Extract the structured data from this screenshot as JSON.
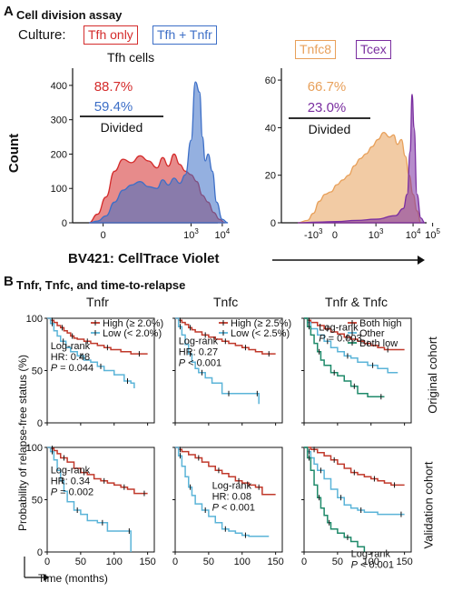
{
  "colors": {
    "tfh_only": "#d42c2c",
    "tfh_tnfr": "#3d6fc7",
    "tnfc8": "#e8a05a",
    "tcex": "#7a2ea0",
    "high": "#c0392b",
    "low": "#5bb4d8",
    "both_low": "#1f8a6a"
  },
  "panelA": {
    "letter": "A",
    "title": "Cell division assay",
    "culture_label": "Culture:",
    "legend": [
      "Tfh only",
      "Tfh + Tnfr"
    ],
    "legend2": [
      "Tnfc8",
      "Tcex"
    ],
    "xlabel": "BV421: CellTrace Violet",
    "ylabel": "Count"
  },
  "panelB": {
    "letter": "B",
    "title": "Tnfr, Tnfc, and time-to-relapse",
    "ylabel": "Probability of relapse-free status (%)",
    "xlabel": "Time (months)",
    "row_labels": [
      "Original cohort",
      "Validation cohort"
    ]
  },
  "chart_data": [
    {
      "type": "area",
      "title": "Tfh cells",
      "x_ticks": [
        "0",
        "10^3",
        "10^4"
      ],
      "ylim": [
        0,
        450
      ],
      "y_ticks": [
        0,
        100,
        200,
        300,
        400
      ],
      "series": [
        {
          "name": "Tfh only",
          "percent_divided": "88.7%",
          "x": [
            -0.5,
            -0.2,
            0.1,
            0.4,
            0.7,
            1.0,
            1.3,
            1.6,
            1.9,
            2.1,
            2.3,
            2.5,
            2.7,
            2.9,
            3.1,
            3.3,
            3.5,
            3.7,
            3.9,
            4.1,
            4.3
          ],
          "y": [
            0,
            25,
            75,
            150,
            185,
            175,
            195,
            180,
            160,
            190,
            165,
            200,
            170,
            150,
            140,
            120,
            80,
            60,
            30,
            10,
            0
          ]
        },
        {
          "name": "Tfh + Tnfr",
          "percent_divided": "59.4%",
          "x": [
            -0.5,
            -0.2,
            0.1,
            0.4,
            0.7,
            1.0,
            1.3,
            1.6,
            1.9,
            2.1,
            2.3,
            2.5,
            2.7,
            2.9,
            3.1,
            3.25,
            3.4,
            3.5,
            3.6,
            3.7,
            3.85,
            4.0,
            4.2,
            4.4
          ],
          "y": [
            0,
            5,
            20,
            60,
            95,
            110,
            120,
            105,
            100,
            125,
            110,
            130,
            115,
            140,
            240,
            410,
            380,
            250,
            180,
            200,
            150,
            60,
            10,
            0
          ]
        }
      ],
      "annotation": "Divided"
    },
    {
      "type": "area",
      "title": "",
      "x_ticks": [
        "-10^3",
        "0",
        "10^3",
        "10^4",
        "10^5"
      ],
      "ylim": [
        0,
        65
      ],
      "y_ticks": [
        0,
        20,
        40,
        60
      ],
      "series": [
        {
          "name": "Tnfc8",
          "percent_divided": "66.7%",
          "x": [
            -3.0,
            -2.5,
            -2.2,
            -1.9,
            -1.6,
            -1.3,
            -1.0,
            -0.7,
            -0.4,
            -0.1,
            0.2,
            0.5,
            0.8,
            1.1,
            1.4,
            1.7,
            1.9,
            2.1,
            2.3,
            2.5,
            2.7,
            2.9,
            3.1,
            3.3
          ],
          "y": [
            0,
            1,
            4,
            9,
            12,
            13,
            16,
            18,
            20,
            24,
            27,
            29,
            32,
            35,
            38,
            36,
            37,
            33,
            35,
            28,
            20,
            12,
            5,
            0
          ]
        },
        {
          "name": "Tcex",
          "percent_divided": "23.0%",
          "x": [
            -3.0,
            -2.0,
            -1.0,
            0.0,
            1.0,
            2.0,
            2.4,
            2.6,
            2.75,
            2.85,
            2.95,
            3.1,
            3.3,
            3.5
          ],
          "y": [
            0,
            0.3,
            0.5,
            1,
            1.5,
            3,
            6,
            12,
            30,
            54,
            40,
            12,
            2,
            0
          ]
        }
      ],
      "annotation": "Divided"
    },
    {
      "type": "line",
      "title": "Tnfr",
      "row": "Original cohort",
      "xlim": [
        0,
        160
      ],
      "ylim": [
        0,
        100
      ],
      "series": [
        {
          "name": "High (≥ 2.0%)",
          "x": [
            0,
            5,
            10,
            15,
            20,
            25,
            30,
            35,
            40,
            45,
            55,
            65,
            75,
            85,
            95,
            110,
            125,
            150
          ],
          "y": [
            100,
            98,
            96,
            93,
            91,
            88,
            86,
            83,
            81,
            80,
            78,
            76,
            74,
            72,
            70,
            68,
            66,
            66
          ]
        },
        {
          "name": "Low (< 2.0%)",
          "x": [
            0,
            5,
            10,
            15,
            20,
            28,
            35,
            45,
            55,
            65,
            75,
            85,
            100,
            115,
            125,
            130
          ],
          "y": [
            100,
            95,
            88,
            83,
            78,
            72,
            68,
            64,
            60,
            58,
            54,
            50,
            46,
            40,
            38,
            33
          ]
        }
      ],
      "stats": [
        "Log-rank",
        "HR: 0.48",
        "P = 0.044"
      ]
    },
    {
      "type": "line",
      "title": "Tnfc",
      "row": "Original cohort",
      "xlim": [
        0,
        160
      ],
      "ylim": [
        0,
        100
      ],
      "series": [
        {
          "name": "High (≥ 2.5%)",
          "x": [
            0,
            5,
            10,
            15,
            20,
            25,
            30,
            40,
            50,
            60,
            70,
            80,
            90,
            100,
            110,
            120,
            130,
            150
          ],
          "y": [
            100,
            98,
            96,
            94,
            91,
            89,
            87,
            84,
            82,
            80,
            78,
            76,
            74,
            72,
            70,
            68,
            66,
            66
          ]
        },
        {
          "name": "Low (< 2.5%)",
          "x": [
            0,
            5,
            10,
            15,
            20,
            25,
            30,
            35,
            45,
            55,
            70,
            90,
            110,
            120,
            125
          ],
          "y": [
            100,
            92,
            84,
            75,
            66,
            58,
            52,
            48,
            43,
            38,
            28,
            28,
            28,
            28,
            18
          ]
        }
      ],
      "stats": [
        "Log-rank",
        "HR: 0.27",
        "P < 0.001"
      ]
    },
    {
      "type": "line",
      "title": "Tnfr & Tnfc",
      "row": "Original cohort",
      "xlim": [
        0,
        160
      ],
      "ylim": [
        0,
        100
      ],
      "series": [
        {
          "name": "Both high",
          "x": [
            0,
            5,
            10,
            20,
            30,
            40,
            50,
            60,
            70,
            80,
            90,
            100,
            110,
            120,
            130,
            150
          ],
          "y": [
            100,
            98,
            96,
            93,
            90,
            87,
            85,
            82,
            80,
            78,
            76,
            74,
            72,
            70,
            70,
            70
          ]
        },
        {
          "name": "Other",
          "x": [
            0,
            5,
            10,
            20,
            30,
            40,
            50,
            60,
            70,
            80,
            95,
            110,
            125,
            140
          ],
          "y": [
            100,
            96,
            90,
            84,
            78,
            72,
            68,
            64,
            62,
            58,
            55,
            52,
            48,
            48
          ]
        },
        {
          "name": "Both low",
          "x": [
            0,
            5,
            10,
            15,
            20,
            25,
            30,
            40,
            50,
            60,
            70,
            80,
            95,
            110,
            120
          ],
          "y": [
            100,
            92,
            84,
            76,
            68,
            60,
            55,
            48,
            45,
            40,
            35,
            28,
            25,
            25,
            25
          ]
        }
      ],
      "stats": [
        "Log-rank",
        "P = 0.003"
      ]
    },
    {
      "type": "line",
      "title": "",
      "row": "Validation cohort",
      "xlim": [
        0,
        160
      ],
      "ylim": [
        0,
        100
      ],
      "series": [
        {
          "name": "High",
          "x": [
            0,
            5,
            10,
            15,
            20,
            30,
            40,
            50,
            60,
            70,
            80,
            90,
            100,
            110,
            120,
            130,
            140,
            150
          ],
          "y": [
            100,
            99,
            97,
            94,
            90,
            86,
            80,
            76,
            74,
            70,
            68,
            66,
            64,
            62,
            60,
            56,
            56,
            56
          ]
        },
        {
          "name": "Low",
          "x": [
            0,
            5,
            10,
            15,
            20,
            25,
            30,
            40,
            50,
            60,
            75,
            90,
            110,
            120,
            125
          ],
          "y": [
            100,
            96,
            88,
            78,
            68,
            58,
            48,
            40,
            36,
            30,
            28,
            20,
            20,
            20,
            0
          ]
        }
      ],
      "stats": [
        "Log-rank",
        "HR: 0.34",
        "P = 0.002"
      ]
    },
    {
      "type": "line",
      "title": "",
      "row": "Validation cohort",
      "xlim": [
        0,
        160
      ],
      "ylim": [
        0,
        100
      ],
      "series": [
        {
          "name": "High",
          "x": [
            0,
            5,
            10,
            20,
            30,
            40,
            50,
            60,
            70,
            80,
            90,
            100,
            110,
            120,
            130,
            150
          ],
          "y": [
            100,
            98,
            96,
            93,
            90,
            86,
            82,
            78,
            75,
            72,
            68,
            66,
            64,
            62,
            55,
            55
          ]
        },
        {
          "name": "Low",
          "x": [
            0,
            5,
            10,
            15,
            20,
            25,
            30,
            40,
            50,
            60,
            70,
            80,
            90,
            100,
            110,
            140
          ],
          "y": [
            100,
            92,
            82,
            72,
            62,
            54,
            46,
            40,
            34,
            28,
            22,
            20,
            18,
            16,
            15,
            15
          ]
        }
      ],
      "stats": [
        "Log-rank",
        "HR: 0.08",
        "P < 0.001"
      ]
    },
    {
      "type": "line",
      "title": "",
      "row": "Validation cohort",
      "xlim": [
        0,
        160
      ],
      "ylim": [
        0,
        100
      ],
      "series": [
        {
          "name": "Both high",
          "x": [
            0,
            10,
            20,
            30,
            40,
            50,
            60,
            70,
            80,
            90,
            100,
            110,
            120,
            130,
            140,
            150
          ],
          "y": [
            100,
            98,
            95,
            92,
            88,
            84,
            80,
            76,
            74,
            72,
            70,
            68,
            66,
            64,
            64,
            64
          ]
        },
        {
          "name": "Other",
          "x": [
            0,
            5,
            10,
            15,
            20,
            30,
            40,
            50,
            60,
            70,
            80,
            90,
            110,
            140,
            150
          ],
          "y": [
            100,
            96,
            90,
            84,
            78,
            70,
            60,
            52,
            45,
            42,
            40,
            38,
            36,
            36,
            36
          ]
        },
        {
          "name": "Both low",
          "x": [
            0,
            5,
            10,
            15,
            20,
            25,
            30,
            35,
            40,
            50,
            60,
            70,
            80,
            90
          ],
          "y": [
            100,
            90,
            78,
            64,
            52,
            42,
            35,
            28,
            22,
            18,
            14,
            10,
            5,
            0
          ]
        }
      ],
      "stats": [
        "Log-rank",
        "P < 0.001"
      ]
    }
  ],
  "km_x_ticks": [
    0,
    50,
    100,
    150
  ],
  "km_y_ticks": [
    0,
    50,
    100
  ]
}
